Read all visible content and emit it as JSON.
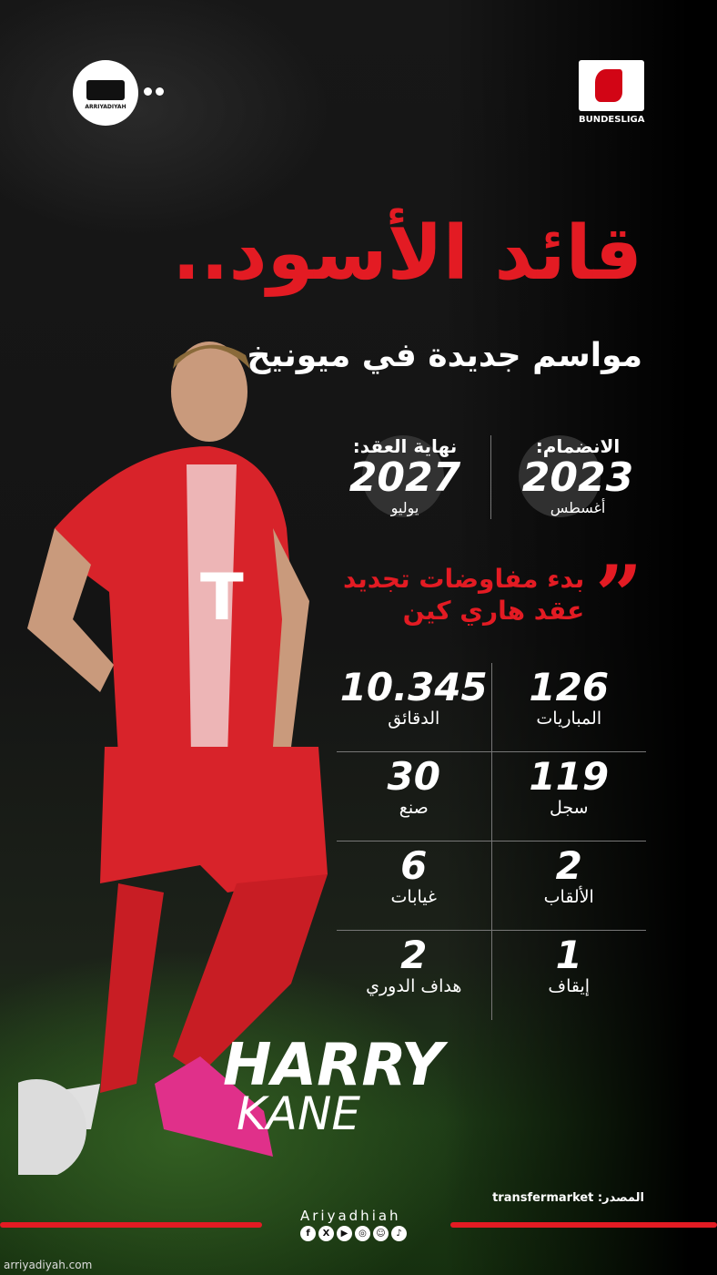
{
  "brand": {
    "logo_text": "ARRIYADIYAH",
    "league": "BUNDESLIGA",
    "social_name": "Ariyadhiah",
    "social_icons": [
      "facebook-icon",
      "x-icon",
      "youtube-icon",
      "instagram-icon",
      "snapchat-icon",
      "tiktok-icon"
    ],
    "footer_url": "arriyadiyah.com"
  },
  "headline": {
    "title": "قائد الأسود..",
    "subtitle": "مواسم جديدة في ميونيخ"
  },
  "dates": {
    "joined": {
      "label": "الانضمام:",
      "year": "2023",
      "month": "أغسطس"
    },
    "contract_end": {
      "label": "نهاية العقد:",
      "year": "2027",
      "month": "يوليو"
    }
  },
  "quote": {
    "line1": "بدء مفاوضات تجديد",
    "line2": "عقد هاري كين"
  },
  "stats": [
    [
      {
        "value": "126",
        "label": "المباريات"
      },
      {
        "value": "10.345",
        "label": "الدقائق"
      }
    ],
    [
      {
        "value": "119",
        "label": "سجل"
      },
      {
        "value": "30",
        "label": "صنع"
      }
    ],
    [
      {
        "value": "2",
        "label": "الألقاب"
      },
      {
        "value": "6",
        "label": "غيابات"
      }
    ],
    [
      {
        "value": "1",
        "label": "إيقاف"
      },
      {
        "value": "2",
        "label": "هداف الدوري"
      }
    ]
  ],
  "player": {
    "first": "HARRY",
    "last": "KANE"
  },
  "source": "المصدر: transfermarket",
  "colors": {
    "accent": "#e31b23",
    "kit": "#d8232a"
  }
}
